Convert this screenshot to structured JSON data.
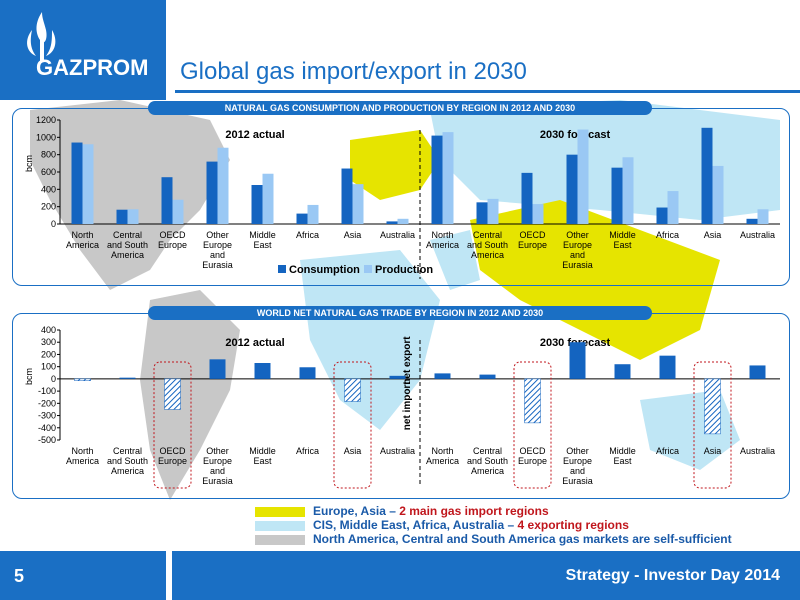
{
  "header": {
    "title": "Global gas import/export in 2030",
    "logo_text": "GAZPROM"
  },
  "footer": {
    "page_number": "5",
    "text": "Strategy - Investor Day 2014"
  },
  "legend_bottom": [
    {
      "color": "#e6e400",
      "text_plain": "Europe, Asia – ",
      "text_red": "2 main gas import regions"
    },
    {
      "color": "#bfe6f5",
      "text_plain": "CIS, Middle East, Africa, Australia – ",
      "text_red": "4 exporting regions"
    },
    {
      "color": "#c8c8c8",
      "text_plain": "North America, Central and South America gas markets are self-sufficient",
      "text_red": ""
    }
  ],
  "chart_data": [
    {
      "type": "bar",
      "title": "NATURAL GAS CONSUMPTION AND PRODUCTION BY REGION IN 2012 AND 2030",
      "ylabel": "bcm",
      "ylim": [
        0,
        1200
      ],
      "yticks": [
        0,
        200,
        400,
        600,
        800,
        1000,
        1200
      ],
      "group_labels": [
        "2012 actual",
        "2030 forecast"
      ],
      "categories": [
        [
          "North",
          "America"
        ],
        [
          "Central",
          "and South",
          "America"
        ],
        [
          "OECD",
          "Europe"
        ],
        [
          "Other",
          "Europe",
          "and",
          "Eurasia"
        ],
        [
          "Middle",
          "East"
        ],
        [
          "Africa"
        ],
        [
          "Asia"
        ],
        [
          "Australia"
        ]
      ],
      "series": [
        {
          "name": "Consumption",
          "color": "#1464c0",
          "values_2012": [
            940,
            165,
            540,
            720,
            450,
            120,
            640,
            30
          ],
          "values_2030": [
            1020,
            250,
            590,
            800,
            650,
            190,
            1110,
            60
          ]
        },
        {
          "name": "Production",
          "color": "#9ac8f4",
          "values_2012": [
            920,
            170,
            280,
            880,
            580,
            220,
            460,
            60
          ],
          "values_2030": [
            1060,
            290,
            230,
            1090,
            770,
            380,
            670,
            170
          ]
        }
      ]
    },
    {
      "type": "bar",
      "title": "WORLD NET NATURAL GAS TRADE BY REGION IN 2012 AND 2030",
      "ylabel": "bcm",
      "ylim": [
        -500,
        400
      ],
      "yticks": [
        -500,
        -400,
        -300,
        -200,
        -100,
        0,
        100,
        200,
        300,
        400
      ],
      "group_labels": [
        "2012 actual",
        "2030 forecast"
      ],
      "axis_annotations": {
        "positive": "net export",
        "negative": "net import"
      },
      "categories": [
        [
          "North",
          "America"
        ],
        [
          "Central",
          "and South",
          "America"
        ],
        [
          "OECD",
          "Europe"
        ],
        [
          "Other",
          "Europe",
          "and",
          "Eurasia"
        ],
        [
          "Middle",
          "East"
        ],
        [
          "Africa"
        ],
        [
          "Asia"
        ],
        [
          "Australia"
        ]
      ],
      "highlighted": [
        "OECD Europe",
        "Asia"
      ],
      "values_2012": [
        -15,
        10,
        -250,
        160,
        130,
        95,
        -185,
        25
      ],
      "values_2030": [
        45,
        35,
        -360,
        300,
        120,
        190,
        -450,
        110
      ],
      "color": "#1464c0"
    }
  ]
}
